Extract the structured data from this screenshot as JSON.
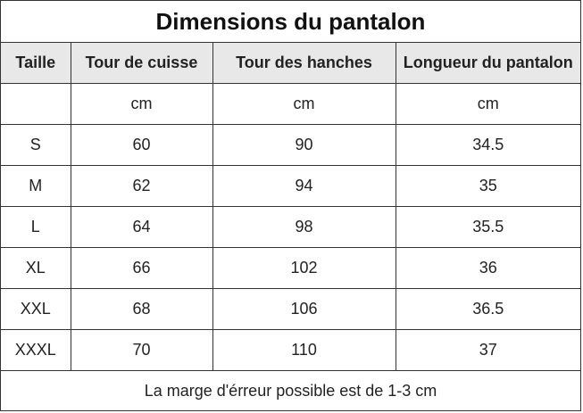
{
  "title": "Dimensions du pantalon",
  "headers": [
    "Taille",
    "Tour de cuisse",
    "Tour des hanches",
    "Longueur du pantalon"
  ],
  "units": [
    "",
    "cm",
    "cm",
    "cm"
  ],
  "rows": [
    [
      "S",
      "60",
      "90",
      "34.5"
    ],
    [
      "M",
      "62",
      "94",
      "35"
    ],
    [
      "L",
      "64",
      "98",
      "35.5"
    ],
    [
      "XL",
      "66",
      "102",
      "36"
    ],
    [
      "XXL",
      "68",
      "106",
      "36.5"
    ],
    [
      "XXXL",
      "70",
      "110",
      "37"
    ]
  ],
  "footer": "La marge d'érreur possible est de 1-3 cm"
}
